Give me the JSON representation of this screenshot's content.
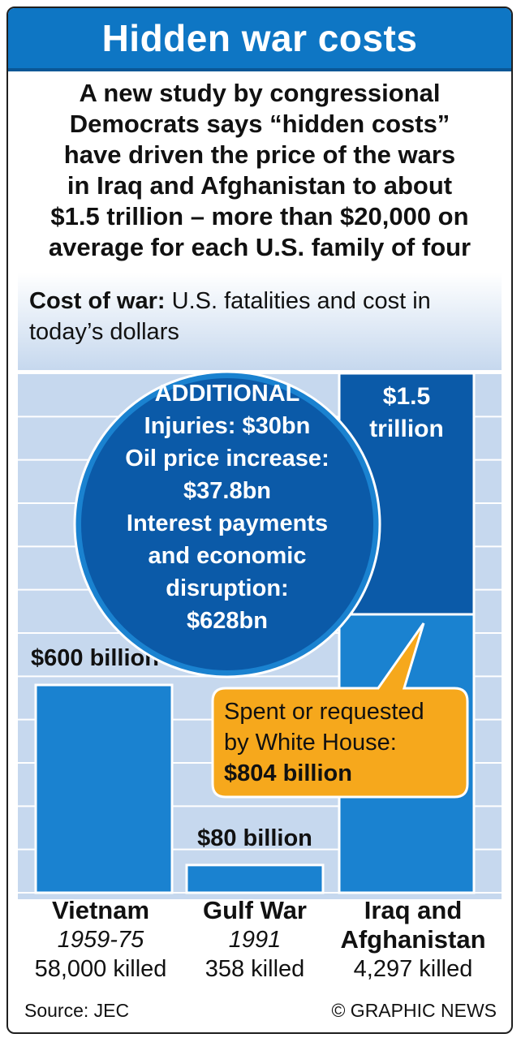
{
  "title": "Hidden war costs",
  "intro_lines": [
    "A new study by congressional",
    "Democrats says “hidden costs”",
    "have driven the price of the wars",
    "in Iraq and Afghanistan to about",
    "$1.5 trillion – more than $20,000 on",
    "average for each U.S. family of four"
  ],
  "subtitle_bold": "Cost of war:",
  "subtitle_rest": " U.S. fatalities and cost in today’s dollars",
  "colors": {
    "header": "#0e76c4",
    "bar": "#1a82d0",
    "bar_dark": "#0b5aa8",
    "grid_bg": "#c6d8ee",
    "callout": "#f6a81c"
  },
  "chart_data": {
    "type": "bar",
    "categories": [
      "Vietnam",
      "Gulf War",
      "Iraq and Afghanistan"
    ],
    "years": [
      "1959-75",
      "1991",
      ""
    ],
    "killed": [
      "58,000 killed",
      "358 killed",
      "4,297 killed"
    ],
    "values": [
      600,
      80,
      1500
    ],
    "units": "billion dollars",
    "value_labels": [
      "$600 billion",
      "$80 billion",
      "$1.5 trillion"
    ],
    "stacked_iraq": {
      "spent_or_requested": 804,
      "additional": 696
    },
    "callout_lines": [
      "Spent or requested",
      "by White House:",
      "$804 billion"
    ],
    "additional_lines": [
      "ADDITIONAL",
      "Injuries: $30bn",
      "Oil price increase:",
      "$37.8bn",
      "Interest payments",
      "and economic",
      "disruption:",
      "$628bn"
    ],
    "additional_items": [
      {
        "name": "Injuries",
        "value": 30
      },
      {
        "name": "Oil price increase",
        "value": 37.8
      },
      {
        "name": "Interest payments and economic disruption",
        "value": 628
      }
    ]
  },
  "cat_labels": [
    {
      "name": "Vietnam",
      "years": "1959-75",
      "killed": "58,000 killed"
    },
    {
      "name": "Gulf War",
      "years": "1991",
      "killed": "358 killed"
    },
    {
      "name_line1": "Iraq and",
      "name_line2": "Afghanistan",
      "killed": "4,297 killed"
    }
  ],
  "source": "Source: JEC",
  "credit": "© GRAPHIC NEWS"
}
